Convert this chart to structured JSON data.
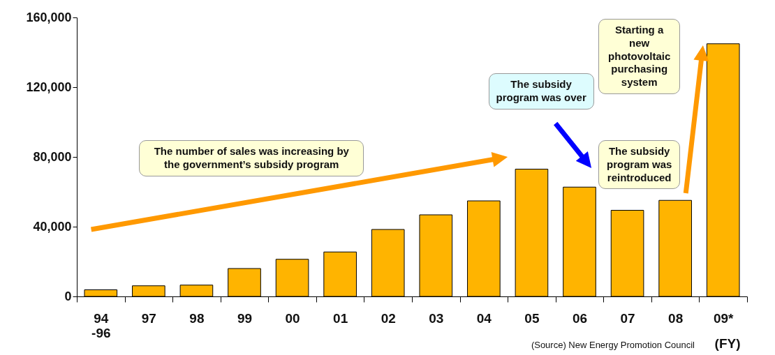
{
  "chart_data": {
    "type": "bar",
    "xlabel": "(FY)",
    "categories": [
      "94\n-96",
      "97",
      "98",
      "99",
      "00",
      "01",
      "02",
      "03",
      "04",
      "05",
      "06",
      "07",
      "08",
      "09*"
    ],
    "values": [
      3800,
      6100,
      6500,
      16000,
      21300,
      25500,
      38400,
      46800,
      54800,
      73000,
      62700,
      49400,
      55100,
      144900
    ],
    "color": "#ffb400",
    "ylim": [
      0,
      160000
    ],
    "yticks": [
      0,
      {
        "value": 40000,
        "label": "40,000"
      },
      {
        "value": 80000,
        "label": "80,000"
      },
      {
        "value": 120000,
        "label": "120,000"
      },
      {
        "value": 160000,
        "label": "160,000"
      }
    ],
    "grid": false,
    "annotations": [
      "The number of sales was increasing by the government’s subsidy  program",
      "The subsidy program was over",
      "The subsidy program was reintroduced",
      "Starting a new photovoltaic purchasing system",
      "(Source) New Energy Promotion Council"
    ]
  }
}
